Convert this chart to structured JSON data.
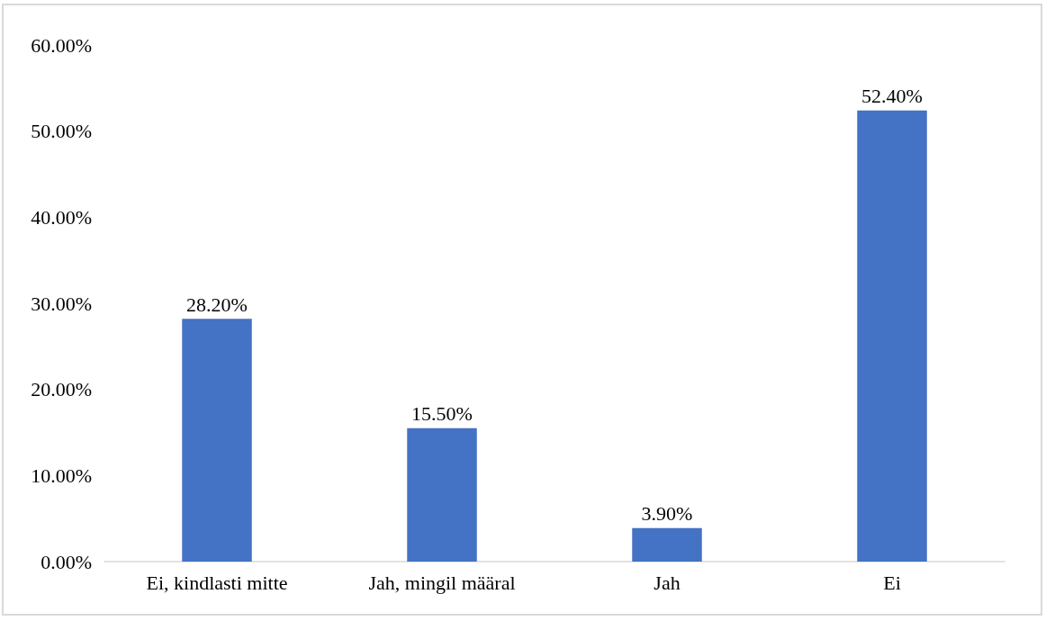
{
  "chart_data": {
    "type": "bar",
    "categories": [
      "Ei, kindlasti mitte",
      "Jah, mingil määral",
      "Jah",
      "Ei"
    ],
    "values": [
      28.2,
      15.5,
      3.9,
      52.4
    ],
    "color": "#4472c4",
    "value_labels": [
      "28.20%",
      "15.50%",
      "3.90%",
      "52.40%"
    ],
    "ylim": [
      0,
      60
    ],
    "yticks": [
      {
        "value": 0,
        "label": "0.00%"
      },
      {
        "value": 10,
        "label": "10.00%"
      },
      {
        "value": 20,
        "label": "20.00%"
      },
      {
        "value": 30,
        "label": "30.00%"
      },
      {
        "value": 40,
        "label": "40.00%"
      },
      {
        "value": 50,
        "label": "50.00%"
      },
      {
        "value": 60,
        "label": "60.00%"
      }
    ],
    "grid": false
  }
}
